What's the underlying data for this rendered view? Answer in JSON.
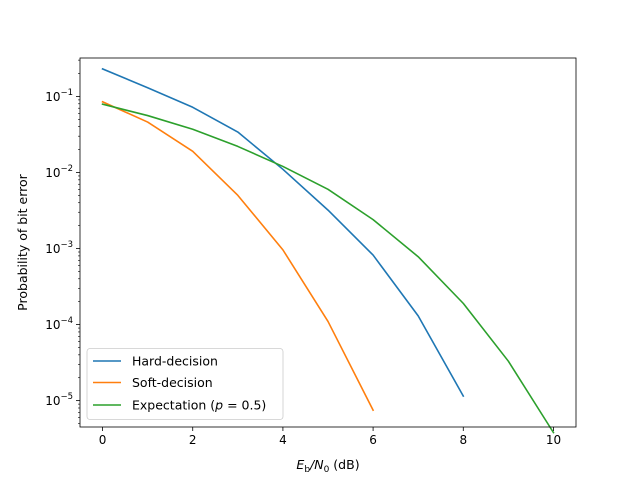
{
  "chart_data": {
    "type": "line",
    "title": "",
    "xlabel_parts": [
      "E",
      "b",
      "/N",
      "0",
      " (dB)"
    ],
    "ylabel": "Probability of bit error",
    "xlim": [
      -0.5,
      10.5
    ],
    "ylim": [
      4.5e-06,
      0.32
    ],
    "yscale": "log",
    "grid": false,
    "legend_position": "lower-left",
    "x_ticks": [
      0,
      2,
      4,
      6,
      8,
      10
    ],
    "x_tick_labels": [
      "0",
      "2",
      "4",
      "6",
      "8",
      "10"
    ],
    "y_ticks": [
      {
        "value": 0.1,
        "base": "10",
        "exp": "−1"
      },
      {
        "value": 0.01,
        "base": "10",
        "exp": "−2"
      },
      {
        "value": 0.001,
        "base": "10",
        "exp": "−3"
      },
      {
        "value": 0.0001,
        "base": "10",
        "exp": "−4"
      },
      {
        "value": 1e-05,
        "base": "10",
        "exp": "−5"
      }
    ],
    "series": [
      {
        "name": "Hard-decision",
        "color": "#1f77b4",
        "x": [
          0,
          1,
          2,
          3,
          4,
          5,
          6,
          7,
          8
        ],
        "values": [
          0.23,
          0.13,
          0.072,
          0.034,
          0.011,
          0.0032,
          0.00082,
          0.00013,
          1.15e-05
        ]
      },
      {
        "name": "Soft-decision",
        "color": "#ff7f0e",
        "x": [
          0,
          1,
          2,
          3,
          4,
          5,
          6
        ],
        "values": [
          0.085,
          0.046,
          0.019,
          0.005,
          0.00096,
          0.00011,
          7.5e-06
        ]
      },
      {
        "name": "Expectation (p = 0.5)",
        "legend_parts": [
          "Expectation (",
          "p",
          " = 0.5)"
        ],
        "color": "#2ca02c",
        "x": [
          0,
          1,
          2,
          3,
          4,
          5,
          6,
          7,
          8,
          9,
          10
        ],
        "values": [
          0.079,
          0.056,
          0.037,
          0.022,
          0.012,
          0.006,
          0.0024,
          0.00078,
          0.00019,
          3.3e-05,
          3.8e-06
        ]
      }
    ]
  }
}
